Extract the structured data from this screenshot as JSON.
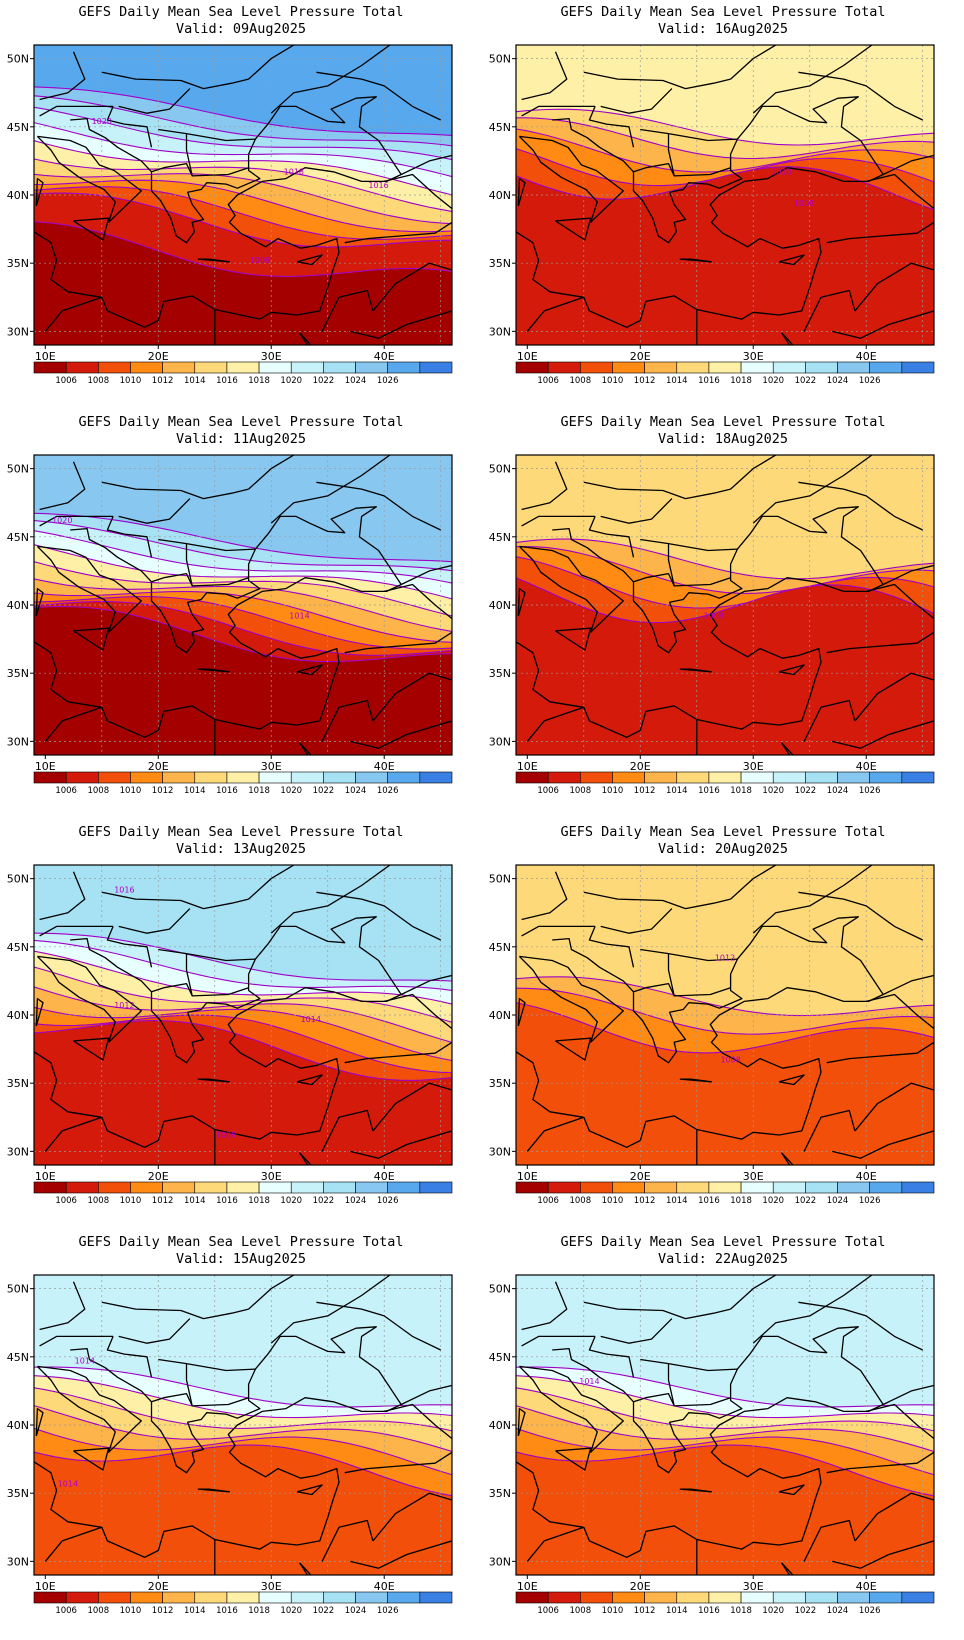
{
  "colors": {
    "bins": [
      "#a50000",
      "#d41a0a",
      "#f2500a",
      "#ff8a14",
      "#fdb44b",
      "#fed97a",
      "#fff0a8",
      "#e8ffff",
      "#c8f2fa",
      "#a6e2f4",
      "#88c8f0",
      "#58a8ee",
      "#3a80e4"
    ],
    "contour": "#a000c8",
    "grid": "#9a9a9a"
  },
  "colorbar": {
    "labels": [
      "1006",
      "1008",
      "1010",
      "1012",
      "1014",
      "1016",
      "1018",
      "1020",
      "1022",
      "1024",
      "1026"
    ]
  },
  "axes": {
    "lat_ticks": [
      "50N",
      "45N",
      "40N",
      "35N",
      "30N"
    ],
    "lon_ticks": [
      "10E",
      "20E",
      "30E",
      "40E"
    ],
    "lon_range": [
      9,
      46
    ],
    "lat_range": [
      29,
      51
    ]
  },
  "panels": [
    {
      "title": "GEFS Daily Mean Sea Level Pressure Total",
      "valid": "Valid: 09Aug2025",
      "fields": {
        "bandN": 9,
        "bandS": 1,
        "lat0": 37.8,
        "slope": 0.1,
        "bulge": 1.0,
        "hi": 11,
        "lo": 0,
        "labels": [
          [
            "1020",
            15,
            45.2
          ],
          [
            "1018",
            32,
            41.5
          ],
          [
            "1016",
            39.5,
            40.5
          ],
          [
            "1008",
            29,
            35
          ]
        ]
      }
    },
    {
      "title": "GEFS Daily Mean Sea Level Pressure Total",
      "valid": "Valid: 16Aug2025",
      "fields": {
        "bandN": 5,
        "bandS": 0,
        "lat0": 40.8,
        "slope": 0.05,
        "bulge": 1.6,
        "hi": 6,
        "lo": 1,
        "labels": [
          [
            "1010",
            32.5,
            41.5
          ],
          [
            "1008",
            34.5,
            39.2
          ]
        ]
      }
    },
    {
      "title": "GEFS Daily Mean Sea Level Pressure Total",
      "valid": "Valid: 11Aug2025",
      "fields": {
        "bandN": 8,
        "bandS": 0,
        "lat0": 37.5,
        "slope": 0.1,
        "bulge": 1.0,
        "hi": 10,
        "lo": 0,
        "labels": [
          [
            "1020",
            11.5,
            46
          ],
          [
            "1014",
            32.5,
            39
          ]
        ]
      }
    },
    {
      "title": "GEFS Daily Mean Sea Level Pressure Total",
      "valid": "Valid: 18Aug2025",
      "fields": {
        "bandN": 4,
        "bandS": 0,
        "lat0": 40.2,
        "slope": 0.05,
        "bulge": 1.8,
        "hi": 5,
        "lo": 1,
        "labels": [
          [
            "1008",
            26.5,
            39
          ]
        ]
      }
    },
    {
      "title": "GEFS Daily Mean Sea Level Pressure Total",
      "valid": "Valid: 13Aug2025",
      "fields": {
        "bandN": 7,
        "bandS": 0,
        "lat0": 37.8,
        "slope": 0.1,
        "bulge": 1.2,
        "hi": 9,
        "lo": 1,
        "labels": [
          [
            "1016",
            17,
            49
          ],
          [
            "1012",
            17,
            40.5
          ],
          [
            "1014",
            33.5,
            39.5
          ],
          [
            "1008",
            26,
            31
          ]
        ]
      }
    },
    {
      "title": "GEFS Daily Mean Sea Level Pressure Total",
      "valid": "Valid: 20Aug2025",
      "fields": {
        "bandN": 4,
        "bandS": 0,
        "lat0": 38.5,
        "slope": 0.06,
        "bulge": 1.4,
        "hi": 5,
        "lo": 2,
        "labels": [
          [
            "1012",
            27.5,
            44
          ],
          [
            "1008",
            28,
            36.5
          ]
        ]
      }
    },
    {
      "title": "GEFS Daily Mean Sea Level Pressure Total",
      "valid": "Valid: 15Aug2025",
      "fields": {
        "bandN": 6,
        "bandS": 0,
        "lat0": 37.5,
        "slope": 0.08,
        "bulge": 1.2,
        "hi": 8,
        "lo": 2,
        "labels": [
          [
            "1014",
            13.5,
            44.5
          ],
          [
            "1014",
            12,
            35.5
          ]
        ]
      }
    },
    {
      "title": "GEFS Daily Mean Sea Level Pressure Total",
      "valid": "Valid: 22Aug2025",
      "fields": {
        "bandN": 6,
        "bandS": 0,
        "lat0": 37.5,
        "slope": 0.08,
        "bulge": 1.2,
        "hi": 8,
        "lo": 2,
        "labels": [
          [
            "1014",
            15.5,
            43
          ]
        ]
      }
    }
  ],
  "coastlines": [
    [
      [
        9.3,
        44.3
      ],
      [
        12.2,
        44.0
      ],
      [
        13.6,
        43.5
      ],
      [
        14.8,
        42.2
      ],
      [
        16.1,
        41.8
      ],
      [
        18.5,
        40.3
      ],
      [
        16.6,
        38.8
      ],
      [
        15.6,
        38.0
      ],
      [
        16.2,
        39.5
      ],
      [
        15.2,
        40.4
      ],
      [
        14.2,
        40.8
      ],
      [
        13.0,
        41.3
      ],
      [
        11.2,
        42.4
      ],
      [
        10.5,
        43.3
      ],
      [
        9.3,
        44.3
      ]
    ],
    [
      [
        12.2,
        45.5
      ],
      [
        13.7,
        45.6
      ],
      [
        13.9,
        44.8
      ],
      [
        15.3,
        44.2
      ],
      [
        16.4,
        43.5
      ],
      [
        18.5,
        42.5
      ],
      [
        19.4,
        41.7
      ],
      [
        19.4,
        40.3
      ],
      [
        20.2,
        39.6
      ],
      [
        21.1,
        38.3
      ],
      [
        21.6,
        37.0
      ],
      [
        22.5,
        36.5
      ],
      [
        23.2,
        37.3
      ],
      [
        23.0,
        38.0
      ],
      [
        24.0,
        38.2
      ],
      [
        23.0,
        39.3
      ],
      [
        22.6,
        40.2
      ],
      [
        23.8,
        40.4
      ],
      [
        24.3,
        40.9
      ],
      [
        26.0,
        40.8
      ],
      [
        27.0,
        40.5
      ],
      [
        29.0,
        41.2
      ],
      [
        28.0,
        41.8
      ],
      [
        28.0,
        43.0
      ],
      [
        28.6,
        44.1
      ],
      [
        29.7,
        45.2
      ],
      [
        30.8,
        46.5
      ],
      [
        32.2,
        46.5
      ],
      [
        33.4,
        46.0
      ],
      [
        35.0,
        45.4
      ],
      [
        36.5,
        45.3
      ],
      [
        35.3,
        46.3
      ],
      [
        37.5,
        47.1
      ],
      [
        39.3,
        47.2
      ],
      [
        38.0,
        46.5
      ],
      [
        37.8,
        45.0
      ],
      [
        39.5,
        44.0
      ],
      [
        41.5,
        41.5
      ],
      [
        40.2,
        41.0
      ],
      [
        38.0,
        41.0
      ],
      [
        35.5,
        41.7
      ],
      [
        33.0,
        42.0
      ],
      [
        31.3,
        41.2
      ],
      [
        29.2,
        41.0
      ],
      [
        27.0,
        40.0
      ],
      [
        26.2,
        39.3
      ],
      [
        26.8,
        38.5
      ],
      [
        26.3,
        38.0
      ],
      [
        27.3,
        37.2
      ],
      [
        28.2,
        36.8
      ],
      [
        29.5,
        36.2
      ],
      [
        30.6,
        36.8
      ],
      [
        32.6,
        36.1
      ],
      [
        34.0,
        36.3
      ],
      [
        35.8,
        36.8
      ],
      [
        36.0,
        35.8
      ],
      [
        35.5,
        34.6
      ],
      [
        35.0,
        33.2
      ],
      [
        34.3,
        31.5
      ],
      [
        32.3,
        31.2
      ],
      [
        30.0,
        31.4
      ],
      [
        29.0,
        30.9
      ],
      [
        25.0,
        31.6
      ],
      [
        23.0,
        32.6
      ],
      [
        20.5,
        32.2
      ],
      [
        20.0,
        30.8
      ],
      [
        18.8,
        30.3
      ],
      [
        15.5,
        31.5
      ],
      [
        15.0,
        32.5
      ],
      [
        12.0,
        32.9
      ],
      [
        10.5,
        33.8
      ],
      [
        11.0,
        35.2
      ],
      [
        10.5,
        36.5
      ],
      [
        9.0,
        37.3
      ]
    ],
    [
      [
        23.5,
        35.3
      ],
      [
        26.3,
        35.1
      ],
      [
        24.5,
        35.3
      ],
      [
        23.5,
        35.3
      ]
    ],
    [
      [
        32.3,
        35.1
      ],
      [
        34.5,
        35.6
      ],
      [
        33.6,
        34.9
      ],
      [
        32.3,
        35.1
      ]
    ],
    [
      [
        12.5,
        38.1
      ],
      [
        15.6,
        38.3
      ],
      [
        15.1,
        36.7
      ],
      [
        12.5,
        38.1
      ]
    ],
    [
      [
        9.2,
        39.2
      ],
      [
        9.8,
        40.9
      ],
      [
        9.3,
        41.2
      ],
      [
        9.2,
        39.2
      ]
    ],
    [
      [
        46.0,
        44.5
      ],
      [
        47.5,
        42.0
      ],
      [
        46.5,
        40.5
      ]
    ],
    [
      [
        32.5,
        29.9
      ],
      [
        34.0,
        28.0
      ],
      [
        35.5,
        28.0
      ],
      [
        33.5,
        29.0
      ],
      [
        32.5,
        29.9
      ]
    ],
    [
      [
        41.5,
        41.5
      ],
      [
        44.0,
        42.5
      ],
      [
        46.5,
        43.0
      ]
    ],
    [
      [
        39.0,
        31.5
      ],
      [
        41.0,
        33.5
      ],
      [
        44.0,
        35.0
      ],
      [
        46.0,
        34.5
      ]
    ],
    [
      [
        34.5,
        30.0
      ],
      [
        36.0,
        32.5
      ],
      [
        38.5,
        33.0
      ],
      [
        39.0,
        31.5
      ]
    ],
    [
      [
        15.0,
        49.0
      ],
      [
        18.0,
        48.5
      ],
      [
        22.0,
        48.4
      ],
      [
        24.0,
        47.8
      ],
      [
        26.5,
        48.2
      ],
      [
        28.0,
        48.5
      ]
    ],
    [
      [
        16.5,
        46.5
      ],
      [
        19.0,
        46.0
      ],
      [
        21.0,
        46.3
      ],
      [
        22.8,
        47.8
      ]
    ],
    [
      [
        20.0,
        44.8
      ],
      [
        22.5,
        44.5
      ],
      [
        26.0,
        44.0
      ],
      [
        28.6,
        44.1
      ]
    ],
    [
      [
        19.4,
        41.7
      ],
      [
        20.5,
        42.0
      ],
      [
        22.5,
        42.3
      ],
      [
        23.0,
        41.4
      ],
      [
        26.2,
        41.5
      ],
      [
        28.0,
        42.0
      ]
    ],
    [
      [
        22.5,
        44.5
      ],
      [
        22.5,
        43.3
      ],
      [
        23.0,
        41.4
      ]
    ],
    [
      [
        16.0,
        46.5
      ],
      [
        15.5,
        45.5
      ],
      [
        17.0,
        45.2
      ],
      [
        19.0,
        45.0
      ],
      [
        19.4,
        43.5
      ]
    ],
    [
      [
        28.0,
        48.5
      ],
      [
        30.0,
        50.0
      ],
      [
        33.0,
        51.5
      ]
    ],
    [
      [
        34.0,
        49.0
      ],
      [
        38.0,
        48.5
      ],
      [
        40.0,
        48.0
      ],
      [
        42.5,
        46.5
      ],
      [
        45.0,
        45.5
      ]
    ],
    [
      [
        30.0,
        46.0
      ],
      [
        32.0,
        47.5
      ],
      [
        35.0,
        48.0
      ],
      [
        38.0,
        49.5
      ],
      [
        40.5,
        51.0
      ]
    ],
    [
      [
        40.0,
        41.0
      ],
      [
        42.5,
        41.5
      ],
      [
        44.5,
        40.0
      ],
      [
        46.0,
        39.0
      ]
    ],
    [
      [
        36.5,
        36.5
      ],
      [
        38.5,
        36.8
      ],
      [
        41.5,
        37.0
      ],
      [
        44.5,
        37.2
      ],
      [
        46.0,
        38.0
      ]
    ],
    [
      [
        37.0,
        30.0
      ],
      [
        39.5,
        29.5
      ],
      [
        42.0,
        30.5
      ],
      [
        46.0,
        31.5
      ]
    ],
    [
      [
        25.0,
        31.6
      ],
      [
        25.0,
        29.0
      ]
    ],
    [
      [
        15.0,
        32.5
      ],
      [
        11.5,
        31.5
      ],
      [
        10.0,
        30.0
      ]
    ],
    [
      [
        9.5,
        47.0
      ],
      [
        12.0,
        47.5
      ],
      [
        13.5,
        48.5
      ],
      [
        12.5,
        50.5
      ]
    ],
    [
      [
        9.5,
        45.8
      ],
      [
        11.0,
        46.5
      ],
      [
        13.7,
        46.5
      ],
      [
        16.0,
        46.5
      ]
    ]
  ]
}
